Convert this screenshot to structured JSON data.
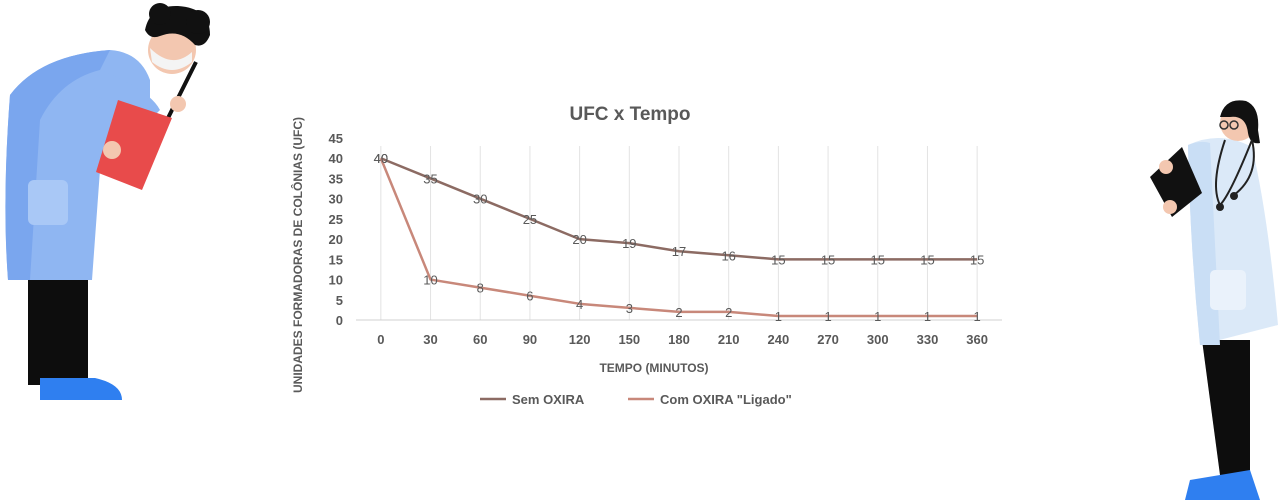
{
  "chart_data": {
    "type": "line",
    "title": "UFC  x  Tempo",
    "xlabel": "TEMPO (MINUTOS)",
    "ylabel": "UNIDADES FORMADORAS DE COLÔNIAS (UFC)",
    "x": [
      0,
      30,
      60,
      90,
      120,
      150,
      180,
      210,
      240,
      270,
      300,
      330,
      360
    ],
    "ylim": [
      0,
      45
    ],
    "yticks": [
      0,
      5,
      10,
      15,
      20,
      25,
      30,
      35,
      40,
      45
    ],
    "grid": "vertical",
    "legend_position": "bottom",
    "series": [
      {
        "name": "Sem OXIRA",
        "color": "#8c6b63",
        "values": [
          40,
          35,
          30,
          25,
          20,
          19,
          17,
          16,
          15,
          15,
          15,
          15,
          15
        ]
      },
      {
        "name": "Com OXIRA \"Ligado\"",
        "color": "#c8887a",
        "values": [
          40,
          10,
          8,
          6,
          4,
          3,
          2,
          2,
          1,
          1,
          1,
          1,
          1
        ]
      }
    ]
  },
  "illustrations": {
    "left": "doctor-with-clipboard-icon",
    "right": "nurse-with-stethoscope-icon"
  }
}
